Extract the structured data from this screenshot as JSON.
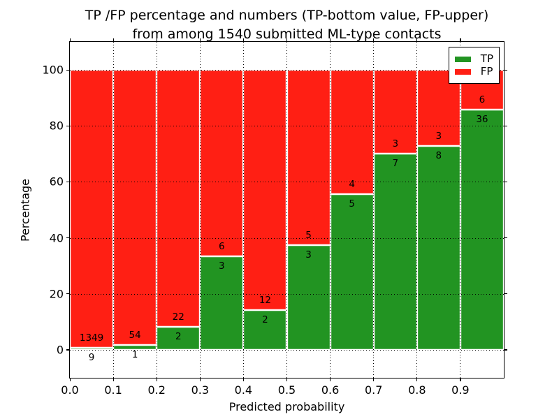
{
  "title": {
    "line1": "TP /FP percentage and numbers (TP-bottom value, FP-upper)",
    "line2": "from among 1540 submitted ML-type contacts"
  },
  "axes": {
    "xlabel": "Predicted probability",
    "ylabel": "Percentage",
    "xtick_labels": [
      "0.0",
      "0.1",
      "0.2",
      "0.3",
      "0.4",
      "0.5",
      "0.6",
      "0.7",
      "0.8",
      "0.9"
    ],
    "ytick_labels": [
      "0",
      "20",
      "40",
      "60",
      "80",
      "100"
    ]
  },
  "legend": {
    "items": [
      {
        "label": "TP",
        "color": "#229422"
      },
      {
        "label": "FP",
        "color": "#ff1f14"
      }
    ]
  },
  "chart_data": {
    "type": "bar",
    "stacked": true,
    "normalized_to_percent": true,
    "title": "TP /FP percentage and numbers (TP-bottom value, FP-upper) from among 1540 submitted ML-type contacts",
    "xlabel": "Predicted probability",
    "ylabel": "Percentage",
    "total_contacts": 1540,
    "bin_starts": [
      0.0,
      0.1,
      0.2,
      0.3,
      0.4,
      0.5,
      0.6,
      0.7,
      0.8,
      0.9
    ],
    "bin_width": 0.1,
    "series": [
      {
        "name": "TP",
        "color": "#229422",
        "counts": [
          9,
          1,
          2,
          3,
          2,
          3,
          5,
          7,
          8,
          36
        ]
      },
      {
        "name": "FP",
        "color": "#ff1f14",
        "counts": [
          1349,
          54,
          22,
          6,
          12,
          5,
          4,
          3,
          3,
          6
        ]
      }
    ],
    "tp_percent_of_bin": [
      0.66,
      1.82,
      8.33,
      33.33,
      14.29,
      37.5,
      55.56,
      70.0,
      72.73,
      85.71
    ],
    "xlim": [
      0,
      1
    ],
    "ylim": [
      -10,
      110
    ],
    "xticks": [
      0.0,
      0.1,
      0.2,
      0.3,
      0.4,
      0.5,
      0.6,
      0.7,
      0.8,
      0.9
    ],
    "yticks": [
      0,
      20,
      40,
      60,
      80,
      100
    ],
    "grid": "dotted",
    "legend_position": "upper right",
    "bar_edge_color": "#ffffff"
  }
}
